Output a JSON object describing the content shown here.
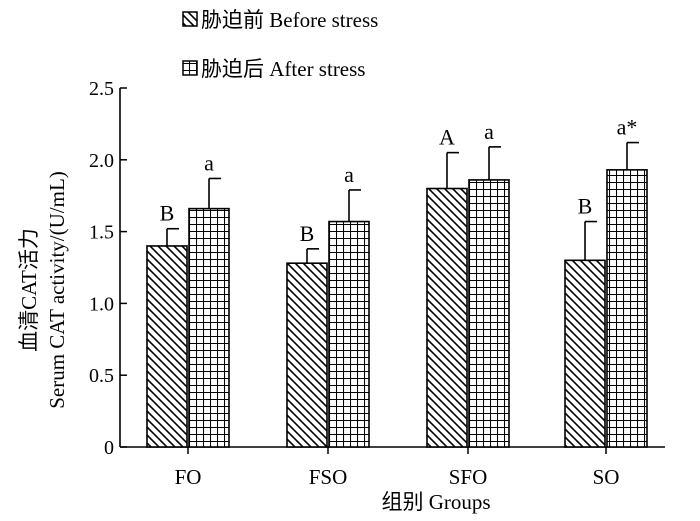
{
  "chart_data": {
    "type": "bar",
    "ylabel_line1": "血清CAT活力",
    "ylabel_line2": "Serum CAT activity/(U/mL)",
    "xlabel": "组别 Groups",
    "ylim": [
      0,
      2.5
    ],
    "yticks": [
      "0",
      "0.5",
      "1.0",
      "1.5",
      "2.0",
      "2.5"
    ],
    "categories": [
      "FO",
      "FSO",
      "SFO",
      "SO"
    ],
    "legend_position": "top-left",
    "series": [
      {
        "name": "胁迫前 Before stress",
        "pattern": "diagonal-hatch",
        "values": [
          1.4,
          1.28,
          1.8,
          1.3
        ],
        "errors": [
          0.12,
          0.1,
          0.25,
          0.27
        ],
        "labels": [
          "B",
          "B",
          "A",
          "B"
        ]
      },
      {
        "name": "胁迫后 After stress",
        "pattern": "grid-hatch",
        "values": [
          1.66,
          1.57,
          1.86,
          1.93
        ],
        "errors": [
          0.21,
          0.22,
          0.23,
          0.19
        ],
        "labels": [
          "a",
          "a",
          "a",
          "a*"
        ]
      }
    ],
    "colors": {
      "stroke": "#000000",
      "fill": "#ffffff"
    }
  }
}
